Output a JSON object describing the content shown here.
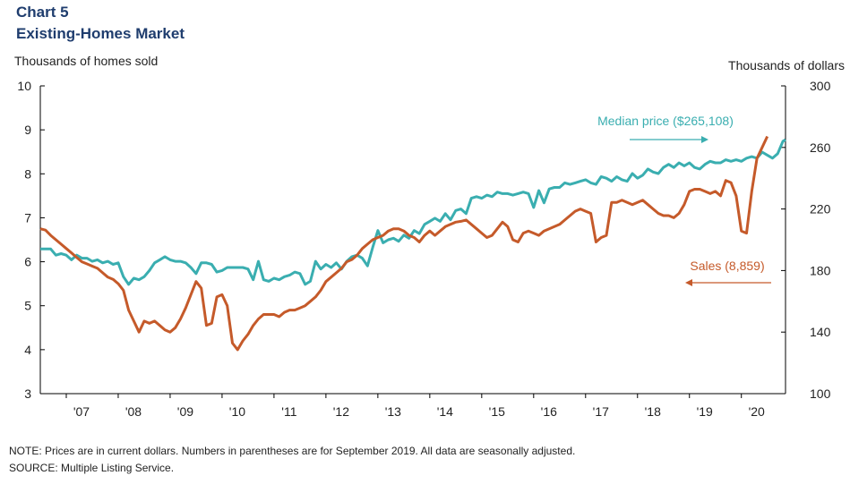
{
  "header": {
    "chart_number": "Chart 5",
    "chart_title": "Existing-Homes Market"
  },
  "footer": {
    "note": "NOTE: Prices are in current dollars. Numbers in parentheses are for September 2019. All data are seasonally adjusted.",
    "source": "SOURCE: Multiple Listing Service."
  },
  "colors": {
    "sales": "#c55a2a",
    "price": "#3aaeb0",
    "axis": "#000000"
  },
  "chart_data": {
    "type": "line",
    "title": "Existing-Homes Market",
    "y_left": {
      "label": "Thousands  of homes sold",
      "range": [
        3,
        10
      ],
      "ticks": [
        3,
        4,
        5,
        6,
        7,
        8,
        9,
        10
      ]
    },
    "y_right": {
      "label": "Thousands  of dollars",
      "range": [
        100,
        300
      ],
      "ticks": [
        100,
        140,
        180,
        220,
        260,
        300
      ]
    },
    "x": {
      "range": [
        2006.5,
        2020.85
      ],
      "tick_labels": [
        "'07",
        "'08",
        "'09",
        "'10",
        "'11",
        "'12",
        "'13",
        "'14",
        "'15",
        "'16",
        "'17",
        "'18",
        "'19",
        "'20"
      ],
      "tick_years": [
        2007,
        2008,
        2009,
        2010,
        2011,
        2012,
        2013,
        2014,
        2015,
        2016,
        2017,
        2018,
        2019,
        2020
      ]
    },
    "grid": false,
    "series": [
      {
        "name": "Median price ($265,108)",
        "axis": "right",
        "arrow": "right",
        "points": [
          [
            2006.5,
            194
          ],
          [
            2006.6,
            194
          ],
          [
            2006.7,
            194
          ],
          [
            2006.8,
            190
          ],
          [
            2006.9,
            191
          ],
          [
            2007.0,
            190
          ],
          [
            2007.1,
            187
          ],
          [
            2007.2,
            190
          ],
          [
            2007.3,
            188
          ],
          [
            2007.4,
            188
          ],
          [
            2007.5,
            186
          ],
          [
            2007.6,
            187
          ],
          [
            2007.7,
            185
          ],
          [
            2007.8,
            186
          ],
          [
            2007.9,
            184
          ],
          [
            2008.0,
            185
          ],
          [
            2008.1,
            176
          ],
          [
            2008.2,
            171
          ],
          [
            2008.3,
            175
          ],
          [
            2008.4,
            174
          ],
          [
            2008.5,
            176
          ],
          [
            2008.6,
            180
          ],
          [
            2008.7,
            185
          ],
          [
            2008.8,
            187
          ],
          [
            2008.9,
            189
          ],
          [
            2009.0,
            187
          ],
          [
            2009.1,
            186
          ],
          [
            2009.2,
            186
          ],
          [
            2009.3,
            185
          ],
          [
            2009.4,
            182
          ],
          [
            2009.5,
            178
          ],
          [
            2009.6,
            185
          ],
          [
            2009.7,
            185
          ],
          [
            2009.8,
            184
          ],
          [
            2009.9,
            179
          ],
          [
            2010.0,
            180
          ],
          [
            2010.1,
            182
          ],
          [
            2010.2,
            182
          ],
          [
            2010.3,
            182
          ],
          [
            2010.4,
            182
          ],
          [
            2010.5,
            181
          ],
          [
            2010.6,
            174
          ],
          [
            2010.7,
            186
          ],
          [
            2010.8,
            174
          ],
          [
            2010.9,
            173
          ],
          [
            2011.0,
            175
          ],
          [
            2011.1,
            174
          ],
          [
            2011.2,
            176
          ],
          [
            2011.3,
            177
          ],
          [
            2011.4,
            179
          ],
          [
            2011.5,
            178
          ],
          [
            2011.6,
            171
          ],
          [
            2011.7,
            173
          ],
          [
            2011.8,
            186
          ],
          [
            2011.9,
            181
          ],
          [
            2012.0,
            184
          ],
          [
            2012.1,
            182
          ],
          [
            2012.2,
            185
          ],
          [
            2012.3,
            181
          ],
          [
            2012.4,
            186
          ],
          [
            2012.5,
            189
          ],
          [
            2012.6,
            190
          ],
          [
            2012.7,
            188
          ],
          [
            2012.8,
            183
          ],
          [
            2012.9,
            195
          ],
          [
            2013.0,
            206
          ],
          [
            2013.1,
            198
          ],
          [
            2013.2,
            200
          ],
          [
            2013.3,
            201
          ],
          [
            2013.4,
            199
          ],
          [
            2013.5,
            203
          ],
          [
            2013.6,
            201
          ],
          [
            2013.7,
            206
          ],
          [
            2013.8,
            204
          ],
          [
            2013.9,
            210
          ],
          [
            2014.0,
            212
          ],
          [
            2014.1,
            214
          ],
          [
            2014.2,
            212
          ],
          [
            2014.3,
            217
          ],
          [
            2014.4,
            213
          ],
          [
            2014.5,
            219
          ],
          [
            2014.6,
            220
          ],
          [
            2014.7,
            217
          ],
          [
            2014.8,
            227
          ],
          [
            2014.9,
            228
          ],
          [
            2015.0,
            227
          ],
          [
            2015.1,
            229
          ],
          [
            2015.2,
            228
          ],
          [
            2015.3,
            231
          ],
          [
            2015.4,
            230
          ],
          [
            2015.5,
            230
          ],
          [
            2015.6,
            229
          ],
          [
            2015.7,
            230
          ],
          [
            2015.8,
            231
          ],
          [
            2015.9,
            230
          ],
          [
            2016.0,
            221
          ],
          [
            2016.1,
            232
          ],
          [
            2016.2,
            224
          ],
          [
            2016.3,
            233
          ],
          [
            2016.4,
            234
          ],
          [
            2016.5,
            234
          ],
          [
            2016.6,
            237
          ],
          [
            2016.7,
            236
          ],
          [
            2016.8,
            237
          ],
          [
            2016.9,
            238
          ],
          [
            2017.0,
            239
          ],
          [
            2017.1,
            237
          ],
          [
            2017.2,
            236
          ],
          [
            2017.3,
            241
          ],
          [
            2017.4,
            240
          ],
          [
            2017.5,
            238
          ],
          [
            2017.6,
            241
          ],
          [
            2017.7,
            239
          ],
          [
            2017.8,
            238
          ],
          [
            2017.9,
            243
          ],
          [
            2018.0,
            240
          ],
          [
            2018.1,
            242
          ],
          [
            2018.2,
            246
          ],
          [
            2018.3,
            244
          ],
          [
            2018.4,
            243
          ],
          [
            2018.5,
            247
          ],
          [
            2018.6,
            249
          ],
          [
            2018.7,
            247
          ],
          [
            2018.8,
            250
          ],
          [
            2018.9,
            248
          ],
          [
            2019.0,
            250
          ],
          [
            2019.1,
            247
          ],
          [
            2019.2,
            246
          ],
          [
            2019.3,
            249
          ],
          [
            2019.4,
            251
          ],
          [
            2019.5,
            250
          ],
          [
            2019.6,
            250
          ],
          [
            2019.7,
            252
          ],
          [
            2019.8,
            251
          ],
          [
            2019.9,
            252
          ],
          [
            2020.0,
            251
          ],
          [
            2020.1,
            253
          ],
          [
            2020.2,
            254
          ],
          [
            2020.3,
            253
          ],
          [
            2020.4,
            257
          ],
          [
            2020.5,
            255
          ],
          [
            2020.6,
            253
          ],
          [
            2020.7,
            256
          ],
          [
            2020.8,
            264
          ],
          [
            2020.85,
            265
          ]
        ]
      },
      {
        "name": "Sales (8,859)",
        "axis": "left",
        "arrow": "left",
        "points": [
          [
            2006.5,
            6.75
          ],
          [
            2006.6,
            6.72
          ],
          [
            2006.7,
            6.6
          ],
          [
            2006.8,
            6.5
          ],
          [
            2006.9,
            6.4
          ],
          [
            2007.0,
            6.3
          ],
          [
            2007.1,
            6.2
          ],
          [
            2007.2,
            6.1
          ],
          [
            2007.3,
            6.0
          ],
          [
            2007.4,
            5.95
          ],
          [
            2007.5,
            5.9
          ],
          [
            2007.6,
            5.85
          ],
          [
            2007.7,
            5.75
          ],
          [
            2007.8,
            5.65
          ],
          [
            2007.9,
            5.6
          ],
          [
            2008.0,
            5.5
          ],
          [
            2008.1,
            5.35
          ],
          [
            2008.2,
            4.9
          ],
          [
            2008.3,
            4.65
          ],
          [
            2008.4,
            4.4
          ],
          [
            2008.5,
            4.65
          ],
          [
            2008.6,
            4.6
          ],
          [
            2008.7,
            4.65
          ],
          [
            2008.8,
            4.55
          ],
          [
            2008.9,
            4.45
          ],
          [
            2009.0,
            4.4
          ],
          [
            2009.1,
            4.5
          ],
          [
            2009.2,
            4.7
          ],
          [
            2009.3,
            4.95
          ],
          [
            2009.4,
            5.25
          ],
          [
            2009.5,
            5.55
          ],
          [
            2009.6,
            5.4
          ],
          [
            2009.7,
            4.55
          ],
          [
            2009.8,
            4.6
          ],
          [
            2009.9,
            5.2
          ],
          [
            2010.0,
            5.25
          ],
          [
            2010.1,
            5.0
          ],
          [
            2010.2,
            4.15
          ],
          [
            2010.3,
            4.0
          ],
          [
            2010.4,
            4.2
          ],
          [
            2010.5,
            4.35
          ],
          [
            2010.6,
            4.55
          ],
          [
            2010.7,
            4.7
          ],
          [
            2010.8,
            4.8
          ],
          [
            2010.9,
            4.8
          ],
          [
            2011.0,
            4.8
          ],
          [
            2011.1,
            4.75
          ],
          [
            2011.2,
            4.85
          ],
          [
            2011.3,
            4.9
          ],
          [
            2011.4,
            4.9
          ],
          [
            2011.5,
            4.95
          ],
          [
            2011.6,
            5.0
          ],
          [
            2011.7,
            5.1
          ],
          [
            2011.8,
            5.2
          ],
          [
            2011.9,
            5.35
          ],
          [
            2012.0,
            5.55
          ],
          [
            2012.1,
            5.65
          ],
          [
            2012.2,
            5.75
          ],
          [
            2012.3,
            5.85
          ],
          [
            2012.4,
            6.0
          ],
          [
            2012.5,
            6.05
          ],
          [
            2012.6,
            6.15
          ],
          [
            2012.7,
            6.3
          ],
          [
            2012.8,
            6.4
          ],
          [
            2012.9,
            6.5
          ],
          [
            2013.0,
            6.55
          ],
          [
            2013.1,
            6.6
          ],
          [
            2013.2,
            6.7
          ],
          [
            2013.3,
            6.75
          ],
          [
            2013.4,
            6.75
          ],
          [
            2013.5,
            6.7
          ],
          [
            2013.6,
            6.6
          ],
          [
            2013.7,
            6.55
          ],
          [
            2013.8,
            6.45
          ],
          [
            2013.9,
            6.6
          ],
          [
            2014.0,
            6.7
          ],
          [
            2014.1,
            6.6
          ],
          [
            2014.2,
            6.7
          ],
          [
            2014.3,
            6.8
          ],
          [
            2014.4,
            6.85
          ],
          [
            2014.5,
            6.9
          ],
          [
            2014.6,
            6.92
          ],
          [
            2014.7,
            6.95
          ],
          [
            2014.8,
            6.85
          ],
          [
            2014.9,
            6.75
          ],
          [
            2015.0,
            6.65
          ],
          [
            2015.1,
            6.55
          ],
          [
            2015.2,
            6.6
          ],
          [
            2015.3,
            6.75
          ],
          [
            2015.4,
            6.9
          ],
          [
            2015.5,
            6.8
          ],
          [
            2015.6,
            6.5
          ],
          [
            2015.7,
            6.45
          ],
          [
            2015.8,
            6.65
          ],
          [
            2015.9,
            6.7
          ],
          [
            2016.0,
            6.65
          ],
          [
            2016.1,
            6.6
          ],
          [
            2016.2,
            6.7
          ],
          [
            2016.3,
            6.75
          ],
          [
            2016.4,
            6.8
          ],
          [
            2016.5,
            6.85
          ],
          [
            2016.6,
            6.95
          ],
          [
            2016.7,
            7.05
          ],
          [
            2016.8,
            7.15
          ],
          [
            2016.9,
            7.2
          ],
          [
            2017.0,
            7.15
          ],
          [
            2017.1,
            7.1
          ],
          [
            2017.2,
            6.45
          ],
          [
            2017.3,
            6.55
          ],
          [
            2017.4,
            6.6
          ],
          [
            2017.5,
            7.35
          ],
          [
            2017.6,
            7.35
          ],
          [
            2017.7,
            7.4
          ],
          [
            2017.8,
            7.35
          ],
          [
            2017.9,
            7.3
          ],
          [
            2018.0,
            7.35
          ],
          [
            2018.1,
            7.4
          ],
          [
            2018.2,
            7.3
          ],
          [
            2018.3,
            7.2
          ],
          [
            2018.4,
            7.1
          ],
          [
            2018.5,
            7.05
          ],
          [
            2018.6,
            7.05
          ],
          [
            2018.7,
            7.0
          ],
          [
            2018.8,
            7.1
          ],
          [
            2018.9,
            7.3
          ],
          [
            2019.0,
            7.6
          ],
          [
            2019.1,
            7.65
          ],
          [
            2019.2,
            7.65
          ],
          [
            2019.3,
            7.6
          ],
          [
            2019.4,
            7.55
          ],
          [
            2019.5,
            7.6
          ],
          [
            2019.6,
            7.5
          ],
          [
            2019.7,
            7.85
          ],
          [
            2019.8,
            7.8
          ],
          [
            2019.9,
            7.5
          ],
          [
            2020.0,
            6.7
          ],
          [
            2020.1,
            6.65
          ],
          [
            2020.2,
            7.6
          ],
          [
            2020.3,
            8.35
          ],
          [
            2020.4,
            8.6
          ],
          [
            2020.5,
            8.85
          ]
        ]
      }
    ]
  }
}
